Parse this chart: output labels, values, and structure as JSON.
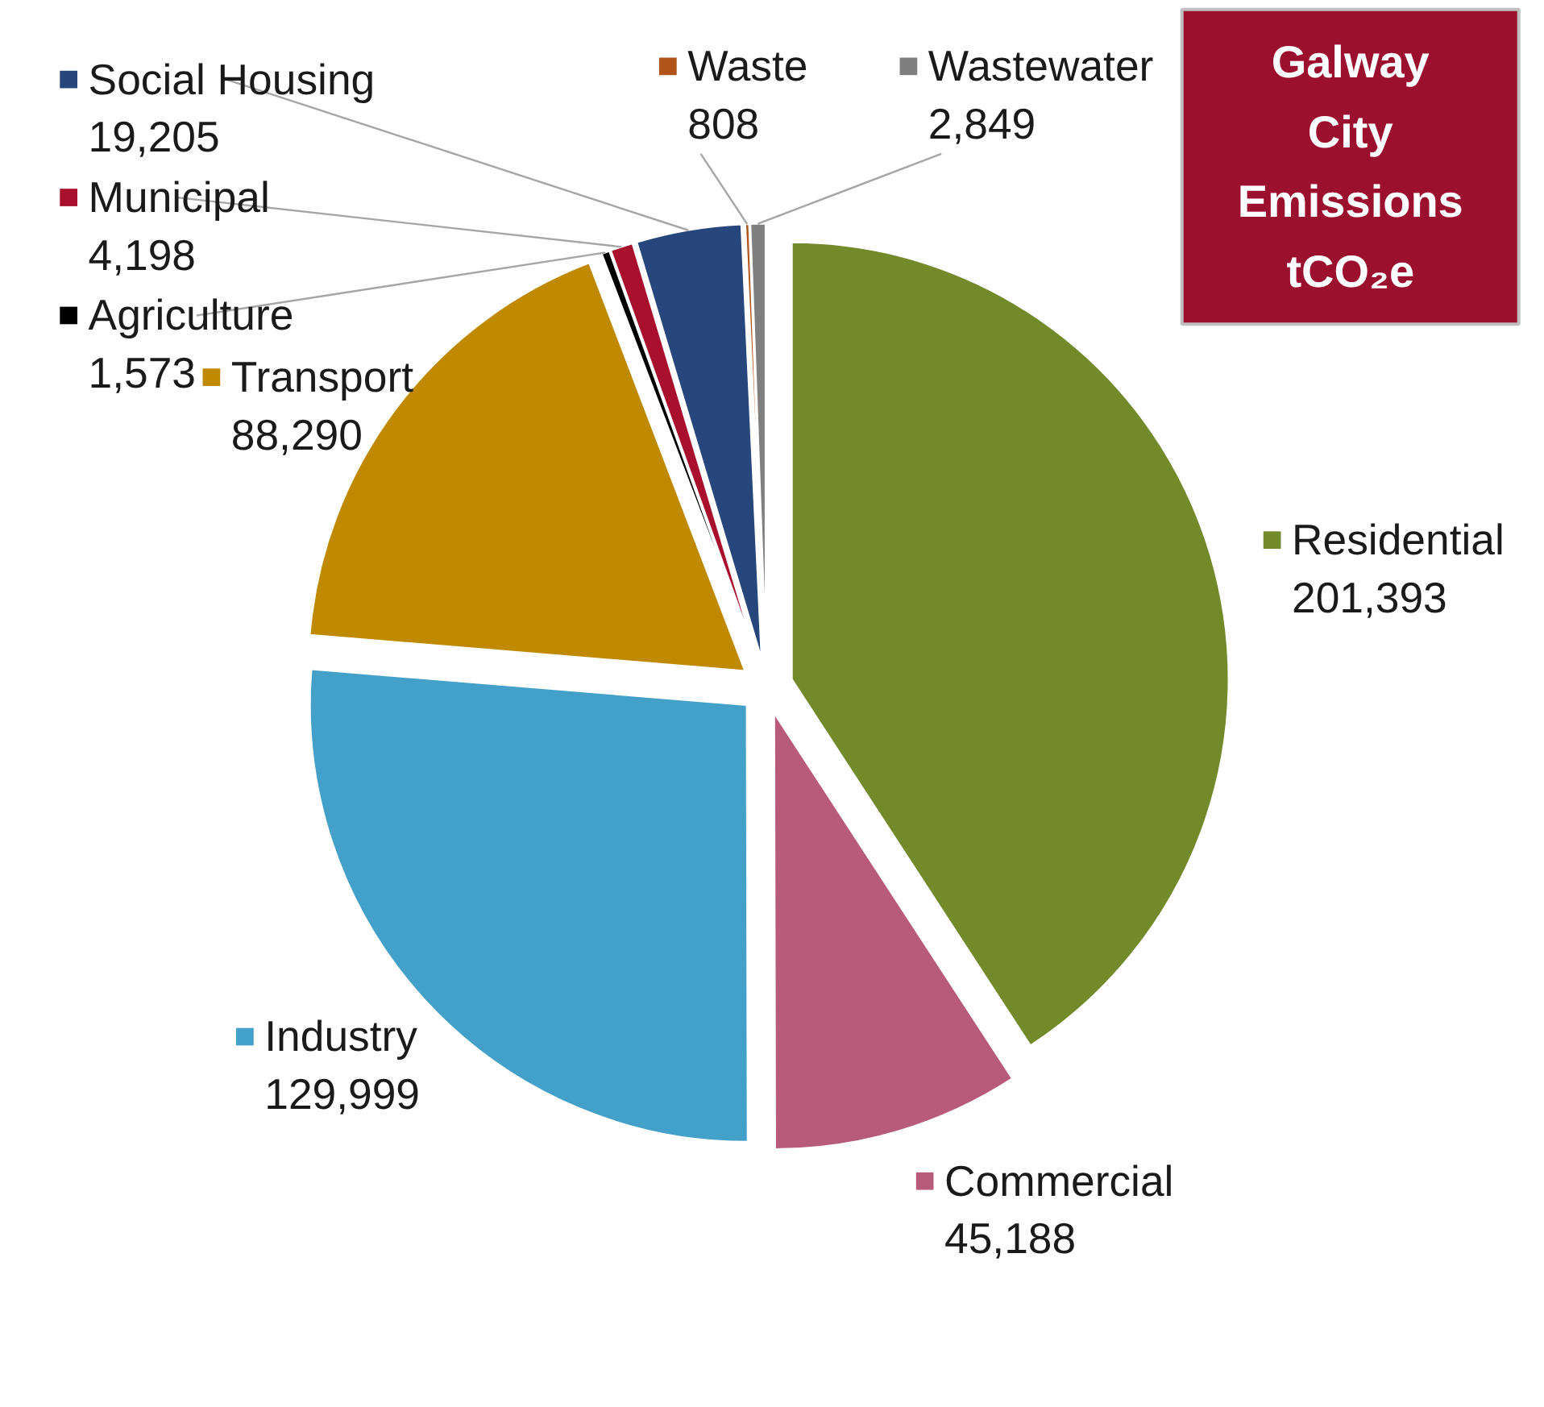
{
  "chart_data": {
    "type": "pie",
    "title": "Galway City Emissions tCO₂e",
    "categories": [
      "Residential",
      "Commercial",
      "Industry",
      "Transport",
      "Agriculture",
      "Municipal",
      "Social Housing",
      "Waste",
      "Wastewater"
    ],
    "values": [
      201393,
      45188,
      129999,
      88290,
      1573,
      4198,
      19205,
      808,
      2849
    ],
    "colors": [
      "#738a2a",
      "#b85a7a",
      "#43a0c8",
      "#bf8a00",
      "#000000",
      "#a8102e",
      "#27467c",
      "#b0541a",
      "#7f7f7f"
    ],
    "value_labels": [
      "201,393",
      "45,188",
      "129,999",
      "88,290",
      "1,573",
      "4,198",
      "19,205",
      "808",
      "2,849"
    ],
    "legend": "top left"
  }
}
